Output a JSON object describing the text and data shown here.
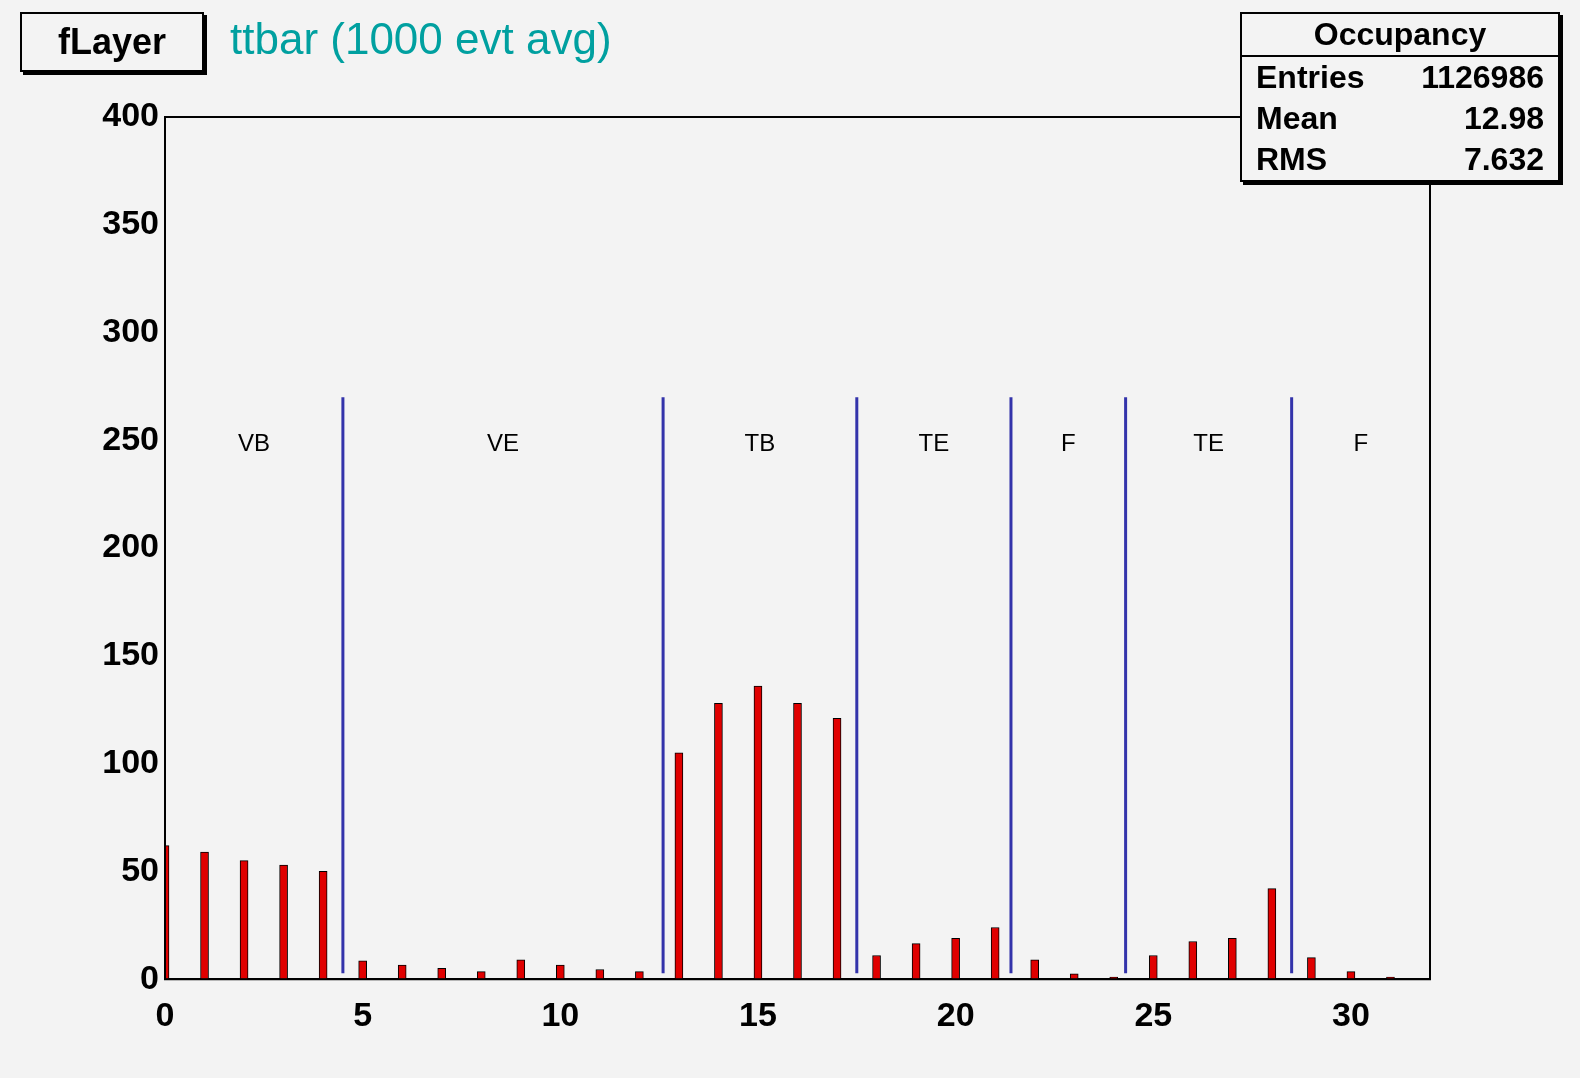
{
  "chart_data": {
    "type": "bar",
    "title": "fLayer",
    "subtitle": "ttbar (1000 evt avg)",
    "x": [
      0,
      1,
      2,
      3,
      4,
      5,
      6,
      7,
      8,
      9,
      10,
      11,
      12,
      13,
      14,
      15,
      16,
      17,
      18,
      19,
      20,
      21,
      22,
      23,
      24,
      25,
      26,
      27,
      28,
      29,
      30,
      31
    ],
    "values": [
      62,
      59,
      55,
      53,
      50,
      8.5,
      6.5,
      5,
      3.5,
      9,
      6.5,
      4.5,
      3.5,
      105,
      128,
      136,
      128,
      121,
      11,
      16.5,
      19,
      24,
      9,
      2.5,
      1,
      11,
      17.5,
      19,
      42,
      10,
      3.5,
      1
    ],
    "color": "#e00000",
    "xlim": [
      0,
      32
    ],
    "xticks": [
      0,
      5,
      10,
      15,
      20,
      25,
      30
    ],
    "ylim": [
      0,
      400
    ],
    "yticks": [
      0,
      50,
      100,
      150,
      200,
      250,
      300,
      350,
      400
    ],
    "grid": false,
    "legend": false,
    "ref_lines": [
      {
        "axis": "x",
        "value": 4.5,
        "color": "#3333aa"
      },
      {
        "axis": "x",
        "value": 12.6,
        "color": "#3333aa"
      },
      {
        "axis": "x",
        "value": 17.5,
        "color": "#3333aa"
      },
      {
        "axis": "x",
        "value": 21.4,
        "color": "#3333aa"
      },
      {
        "axis": "x",
        "value": 24.3,
        "color": "#3333aa"
      },
      {
        "axis": "x",
        "value": 28.5,
        "color": "#3333aa"
      }
    ],
    "annotations": [
      "VB",
      "VE",
      "TB",
      "TE",
      "F",
      "TE",
      "F",
      "Occupancy",
      "Entries",
      "1126986",
      "Mean",
      "12.98",
      "RMS",
      "7.632"
    ]
  }
}
